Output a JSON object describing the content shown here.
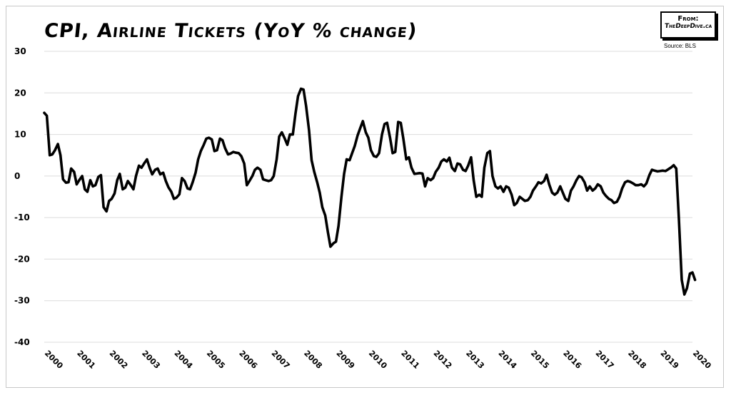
{
  "chart_data": {
    "type": "line",
    "title": "CPI, Airline Tickets (YoY % change)",
    "source": "Source: BLS",
    "badge": {
      "from": "From:",
      "site": "TheDeepDive.ca"
    },
    "xlabel": "",
    "ylabel": "",
    "ylim": [
      -40,
      30
    ],
    "yticks": [
      30,
      20,
      10,
      0,
      -10,
      -20,
      -30,
      -40
    ],
    "xlim": [
      2000,
      2020
    ],
    "xticks": [
      "2000",
      "2001",
      "2002",
      "2003",
      "2004",
      "2005",
      "2006",
      "2007",
      "2008",
      "2009",
      "2010",
      "2011",
      "2012",
      "2013",
      "2014",
      "2015",
      "2016",
      "2017",
      "2018",
      "2019",
      "2020"
    ],
    "grid": true,
    "series": [
      {
        "x": [
          2000.0,
          2000.08,
          2000.17,
          2000.25,
          2000.33,
          2000.42,
          2000.5,
          2000.58,
          2000.67,
          2000.75,
          2000.83,
          2000.92,
          2001.0,
          2001.08,
          2001.17,
          2001.25,
          2001.33,
          2001.42,
          2001.5,
          2001.58,
          2001.67,
          2001.75,
          2001.83,
          2001.92,
          2002.0,
          2002.08,
          2002.17,
          2002.25,
          2002.33,
          2002.42,
          2002.5,
          2002.58,
          2002.67,
          2002.75,
          2002.83,
          2002.92,
          2003.0,
          2003.08,
          2003.17,
          2003.25,
          2003.33,
          2003.42,
          2003.5,
          2003.58,
          2003.67,
          2003.75,
          2003.83,
          2003.92,
          2004.0,
          2004.08,
          2004.17,
          2004.25,
          2004.33,
          2004.42,
          2004.5,
          2004.58,
          2004.67,
          2004.75,
          2004.83,
          2004.92,
          2005.0,
          2005.08,
          2005.17,
          2005.25,
          2005.33,
          2005.42,
          2005.5,
          2005.58,
          2005.67,
          2005.75,
          2005.83,
          2005.92,
          2006.0,
          2006.08,
          2006.17,
          2006.25,
          2006.33,
          2006.42,
          2006.5,
          2006.58,
          2006.67,
          2006.75,
          2006.83,
          2006.92,
          2007.0,
          2007.08,
          2007.17,
          2007.25,
          2007.33,
          2007.42,
          2007.5,
          2007.58,
          2007.67,
          2007.75,
          2007.83,
          2007.92,
          2008.0,
          2008.08,
          2008.17,
          2008.25,
          2008.33,
          2008.42,
          2008.5,
          2008.58,
          2008.67,
          2008.75,
          2008.83,
          2008.92,
          2009.0,
          2009.08,
          2009.17,
          2009.25,
          2009.33,
          2009.42,
          2009.5,
          2009.58,
          2009.67,
          2009.75,
          2009.83,
          2009.92,
          2010.0,
          2010.08,
          2010.17,
          2010.25,
          2010.33,
          2010.42,
          2010.5,
          2010.58,
          2010.67,
          2010.75,
          2010.83,
          2010.92,
          2011.0,
          2011.08,
          2011.17,
          2011.25,
          2011.33,
          2011.42,
          2011.5,
          2011.58,
          2011.67,
          2011.75,
          2011.83,
          2011.92,
          2012.0,
          2012.08,
          2012.17,
          2012.25,
          2012.33,
          2012.42,
          2012.5,
          2012.58,
          2012.67,
          2012.75,
          2012.83,
          2012.92,
          2013.0,
          2013.08,
          2013.17,
          2013.25,
          2013.33,
          2013.42,
          2013.5,
          2013.58,
          2013.67,
          2013.75,
          2013.83,
          2013.92,
          2014.0,
          2014.08,
          2014.17,
          2014.25,
          2014.33,
          2014.42,
          2014.5,
          2014.58,
          2014.67,
          2014.75,
          2014.83,
          2014.92,
          2015.0,
          2015.08,
          2015.17,
          2015.25,
          2015.33,
          2015.42,
          2015.5,
          2015.58,
          2015.67,
          2015.75,
          2015.83,
          2015.92,
          2016.0,
          2016.08,
          2016.17,
          2016.25,
          2016.33,
          2016.42,
          2016.5,
          2016.58,
          2016.67,
          2016.75,
          2016.83,
          2016.92,
          2017.0,
          2017.08,
          2017.17,
          2017.25,
          2017.33,
          2017.42,
          2017.5,
          2017.58,
          2017.67,
          2017.75,
          2017.83,
          2017.92,
          2018.0,
          2018.08,
          2018.17,
          2018.25,
          2018.33,
          2018.42,
          2018.5,
          2018.58,
          2018.67,
          2018.75,
          2018.83,
          2018.92,
          2019.0,
          2019.08,
          2019.17,
          2019.25,
          2019.33,
          2019.42,
          2019.5,
          2019.58,
          2019.67,
          2019.75,
          2019.83,
          2019.92,
          2020.0,
          2020.08
        ],
        "values": [
          15.2,
          14.5,
          5,
          5.2,
          6.2,
          7.7,
          5,
          -0.8,
          -1.6,
          -1.5,
          1.8,
          1,
          -2,
          -1,
          0,
          -3.2,
          -3.8,
          -1,
          -2.5,
          -2.2,
          -0.2,
          0.2,
          -7.5,
          -8.5,
          -6,
          -5.5,
          -4.2,
          -1,
          0.5,
          -3.2,
          -2.8,
          -1.2,
          -2.2,
          -3.2,
          0,
          2.5,
          2,
          3,
          4,
          2,
          0.4,
          1.5,
          1.8,
          0.4,
          0.8,
          -1.2,
          -2.7,
          -3.8,
          -5.5,
          -5.2,
          -4.4,
          -0.5,
          -1.2,
          -3,
          -3.2,
          -1.5,
          0.8,
          4,
          6,
          7.5,
          9,
          9.2,
          8.8,
          6,
          6.2,
          9,
          8.6,
          6.7,
          5.2,
          5.4,
          5.8,
          5.6,
          5.5,
          4.8,
          3,
          -2.2,
          -1.2,
          0,
          1.5,
          2,
          1.5,
          -0.8,
          -1,
          -1.2,
          -1,
          0,
          4,
          9.5,
          10.5,
          9,
          7.5,
          10,
          10,
          15,
          19.2,
          21,
          20.8,
          16.8,
          11,
          3.8,
          1,
          -1.5,
          -4,
          -7.5,
          -9.5,
          -13.5,
          -17,
          -16.2,
          -15.8,
          -12,
          -5,
          0.5,
          4,
          3.8,
          5.5,
          7.2,
          9.8,
          11.5,
          13.2,
          10.5,
          9.2,
          6.2,
          4.8,
          4.6,
          5.5,
          10,
          12.5,
          12.8,
          9.2,
          5.5,
          5.8,
          13,
          12.8,
          9,
          4,
          4.5,
          2,
          0.5,
          0.6,
          0.7,
          0.6,
          -2.5,
          -0.5,
          -1,
          -0.5,
          1,
          2,
          3.5,
          4,
          3.5,
          4.4,
          2,
          1.2,
          3,
          2.8,
          1.5,
          1.2,
          2.5,
          4.5,
          -1,
          -5,
          -4.5,
          -5,
          2,
          5.5,
          6,
          0,
          -2.5,
          -3,
          -2.5,
          -3.8,
          -2.5,
          -2.8,
          -4.5,
          -7,
          -6.5,
          -5,
          -5.5,
          -6,
          -5.8,
          -5,
          -3.5,
          -2.5,
          -1.5,
          -1.8,
          -1.2,
          0.3,
          -2,
          -4,
          -4.5,
          -4,
          -2.5,
          -4,
          -5.5,
          -6,
          -3.5,
          -2.5,
          -1,
          0,
          -0.3,
          -1.5,
          -3.5,
          -2.5,
          -3.5,
          -3,
          -2,
          -2.5,
          -4,
          -4.8,
          -5.5,
          -5.8,
          -6.5,
          -6.2,
          -5,
          -3,
          -1.5,
          -1.2,
          -1.4,
          -1.8,
          -2.2,
          -2.2,
          -2,
          -2.5,
          -1.8,
          0.2,
          1.5,
          1.3,
          1.1,
          1.2,
          1.3,
          1.2,
          1.6,
          2,
          2.6,
          1.8,
          -10,
          -25,
          -28.5,
          -27,
          -23.5,
          -23.2,
          -25
        ]
      }
    ]
  }
}
